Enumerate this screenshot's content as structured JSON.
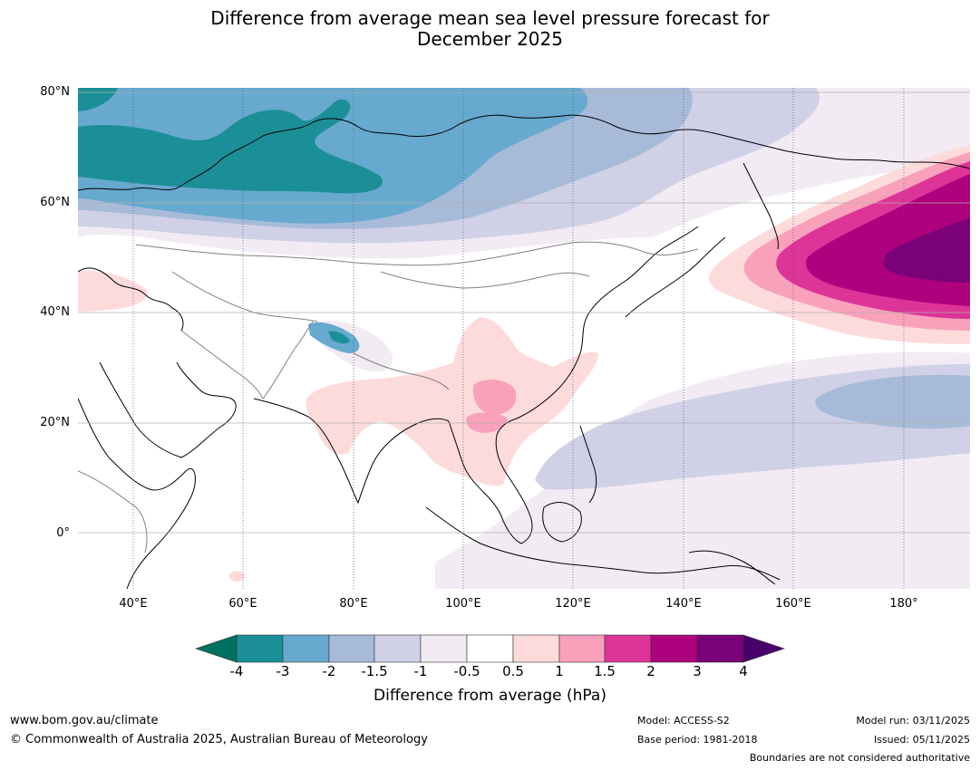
{
  "title_line1": "Difference from average mean sea level pressure forecast for",
  "title_line2": "December 2025",
  "map": {
    "lat_labels": [
      "80°N",
      "60°N",
      "40°N",
      "20°N",
      "0°"
    ],
    "lon_labels": [
      "40°E",
      "60°E",
      "80°E",
      "100°E",
      "120°E",
      "140°E",
      "160°E",
      "180°"
    ]
  },
  "colorbar": {
    "label": "Difference from average (hPa)",
    "ticks": [
      "-4",
      "-3",
      "-2",
      "-1.5",
      "-1",
      "-0.5",
      "0.5",
      "1",
      "1.5",
      "2",
      "3",
      "4"
    ],
    "colors": [
      "#00705f",
      "#1b8f97",
      "#67a9cf",
      "#a7bbd9",
      "#d0d1e6",
      "#f2ebf4",
      "#ffffff",
      "#fddbdb",
      "#f9a1bb",
      "#dd3497",
      "#ae017e",
      "#7a0177",
      "#49006a"
    ]
  },
  "colors": {
    "strong_negative": "#1b8f97",
    "negative": "#67a9cf",
    "weak_negative": "#a7bbd9",
    "slight_negative": "#d0d1e6",
    "faint_negative": "#f2ebf4",
    "faint_positive": "#fddbdb",
    "weak_positive": "#f9a1bb",
    "positive": "#dd3497",
    "strong_positive": "#ae017e",
    "very_strong_positive": "#7a0177"
  },
  "footer": {
    "website": "www.bom.gov.au/climate",
    "copyright": "© Commonwealth of Australia 2025, Australian Bureau of Meteorology",
    "model": "Model: ACCESS-S2",
    "base_period": "Base period: 1981-2018",
    "model_run": "Model run: 03/11/2025",
    "issued": "Issued: 05/11/2025",
    "disclaimer": "Boundaries are not considered authoritative"
  }
}
